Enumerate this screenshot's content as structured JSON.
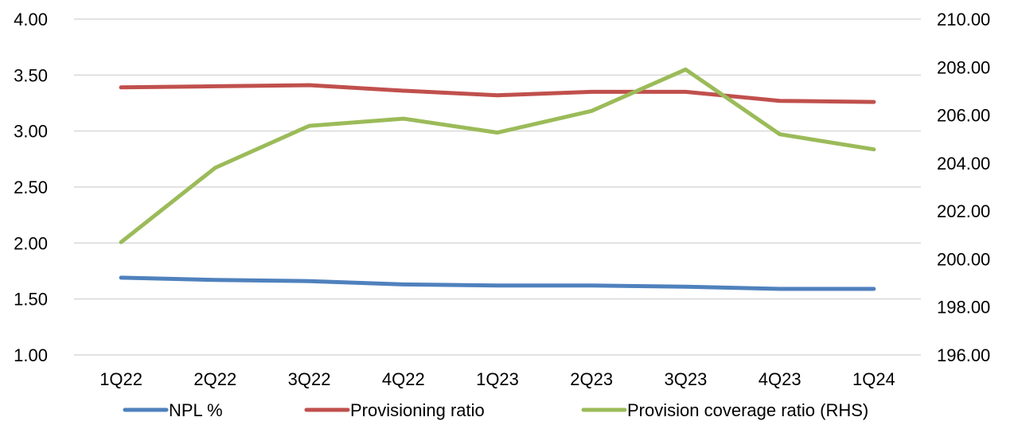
{
  "chart_data": {
    "type": "line",
    "title": "",
    "xlabel": "",
    "ylabel": "",
    "y2label": "",
    "categories": [
      "1Q22",
      "2Q22",
      "3Q22",
      "4Q22",
      "1Q23",
      "2Q23",
      "3Q23",
      "4Q23",
      "1Q24"
    ],
    "ylim": [
      1.0,
      4.0
    ],
    "y_ticks": [
      "4.00",
      "3.50",
      "3.00",
      "2.50",
      "2.00",
      "1.50",
      "1.00"
    ],
    "y2lim": [
      196.0,
      210.0
    ],
    "y2_ticks": [
      "210.00",
      "208.00",
      "206.00",
      "204.00",
      "202.00",
      "200.00",
      "198.00",
      "196.00"
    ],
    "grid": true,
    "legend_position": "bottom",
    "series": [
      {
        "name": "NPL %",
        "axis": "left",
        "color": "#4f81bd",
        "values": [
          1.69,
          1.67,
          1.66,
          1.63,
          1.62,
          1.62,
          1.61,
          1.59,
          1.59
        ]
      },
      {
        "name": "Provisioning ratio",
        "axis": "left",
        "color": "#c0504d",
        "values": [
          3.39,
          3.4,
          3.41,
          3.36,
          3.32,
          3.35,
          3.35,
          3.27,
          3.26
        ]
      },
      {
        "name": "Provision coverage ratio (RHS)",
        "axis": "right",
        "color": "#9bbb59",
        "values": [
          200.7,
          203.8,
          205.55,
          205.85,
          205.27,
          206.17,
          207.9,
          205.2,
          204.57
        ]
      }
    ]
  }
}
